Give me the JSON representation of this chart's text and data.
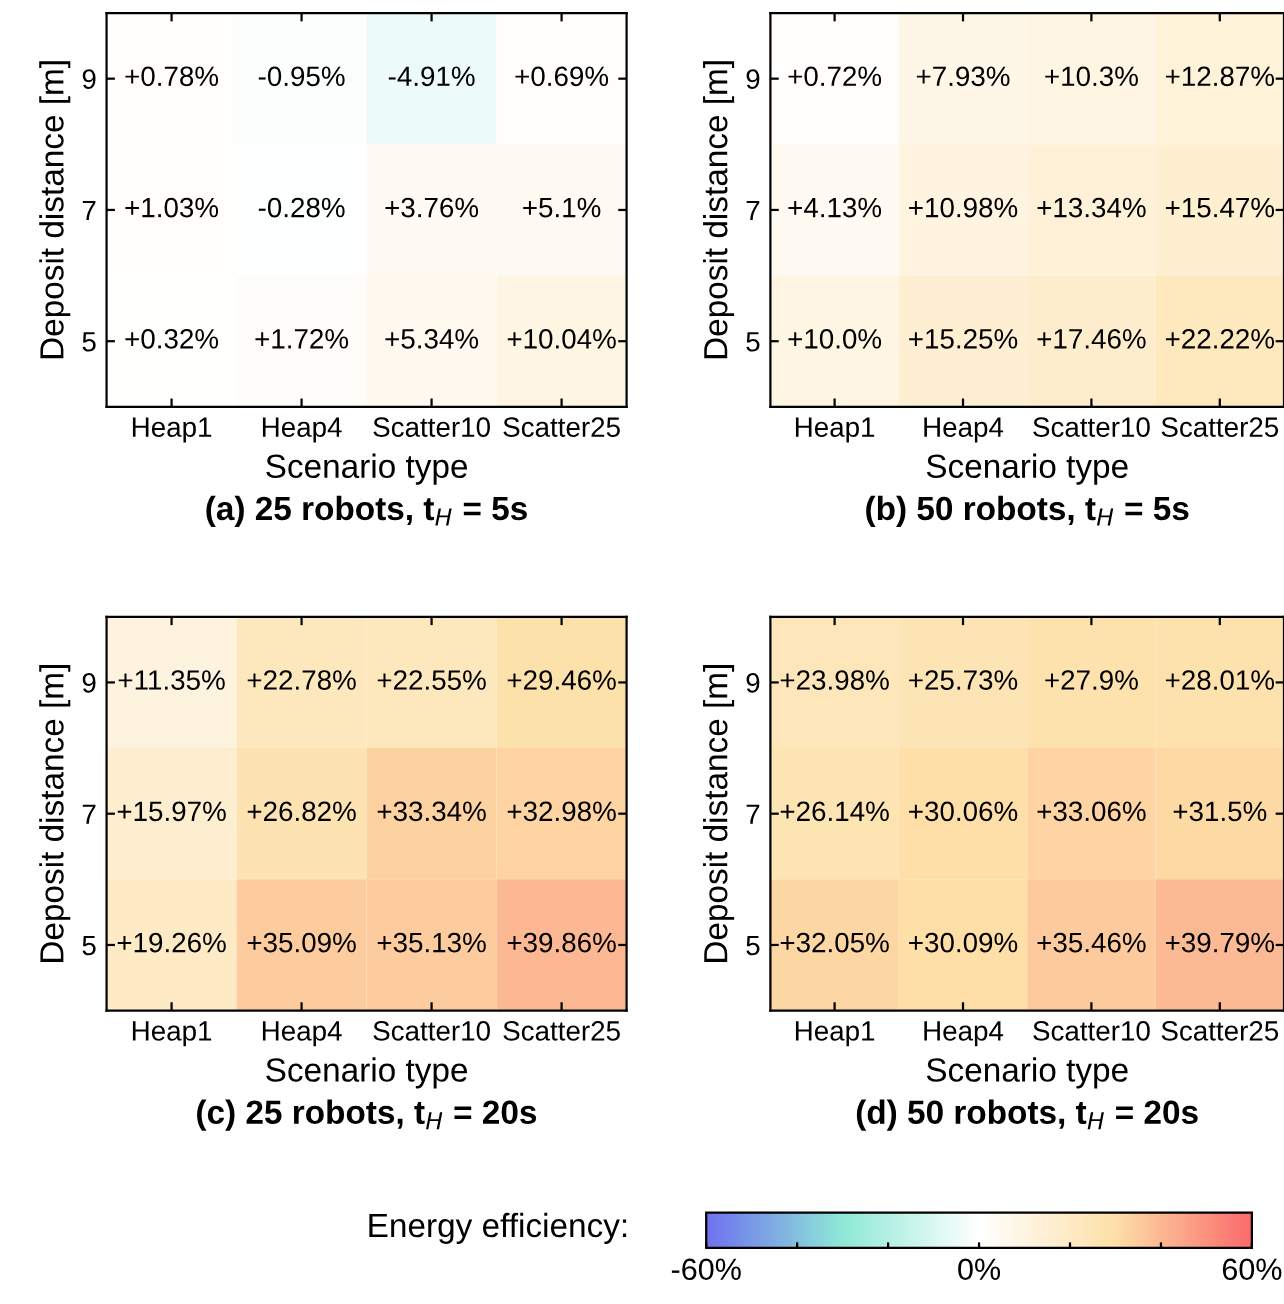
{
  "chart_data": [
    {
      "type": "heatmap",
      "title": "(a) 25 robots, t$_{H}$ = 5s",
      "xlabel": "Scenario type",
      "ylabel": "Deposit distance [m]",
      "categories": [
        "Heap1",
        "Heap4",
        "Scatter10",
        "Scatter25"
      ],
      "y_categories": [
        "9",
        "7",
        "5"
      ],
      "cells": [
        [
          0.78,
          -0.95,
          -4.91,
          0.69
        ],
        [
          1.03,
          -0.28,
          3.76,
          5.1
        ],
        [
          0.32,
          1.72,
          5.34,
          10.04
        ]
      ],
      "cell_labels": [
        [
          "+0.78%",
          "-0.95%",
          "-4.91%",
          "+0.69%"
        ],
        [
          "+1.03%",
          "-0.28%",
          "+3.76%",
          "+5.1%"
        ],
        [
          "+0.32%",
          "+1.72%",
          "+5.34%",
          "+10.04%"
        ]
      ]
    },
    {
      "type": "heatmap",
      "title": "(b) 50 robots, t$_{H}$ = 5s",
      "xlabel": "Scenario type",
      "ylabel": "Deposit distance [m]",
      "categories": [
        "Heap1",
        "Heap4",
        "Scatter10",
        "Scatter25"
      ],
      "y_categories": [
        "9",
        "7",
        "5"
      ],
      "cells": [
        [
          0.72,
          7.93,
          10.3,
          12.87
        ],
        [
          4.13,
          10.98,
          13.34,
          15.47
        ],
        [
          10.0,
          15.25,
          17.46,
          22.22
        ]
      ],
      "cell_labels": [
        [
          "+0.72%",
          "+7.93%",
          "+10.3%",
          "+12.87%"
        ],
        [
          "+4.13%",
          "+10.98%",
          "+13.34%",
          "+15.47%"
        ],
        [
          "+10.0%",
          "+15.25%",
          "+17.46%",
          "+22.22%"
        ]
      ]
    },
    {
      "type": "heatmap",
      "title": "(c) 25 robots, t$_{H}$ = 20s",
      "xlabel": "Scenario type",
      "ylabel": "Deposit distance [m]",
      "categories": [
        "Heap1",
        "Heap4",
        "Scatter10",
        "Scatter25"
      ],
      "y_categories": [
        "9",
        "7",
        "5"
      ],
      "cells": [
        [
          11.35,
          22.78,
          22.55,
          29.46
        ],
        [
          15.97,
          26.82,
          33.34,
          32.98
        ],
        [
          19.26,
          35.09,
          35.13,
          39.86
        ]
      ],
      "cell_labels": [
        [
          "+11.35%",
          "+22.78%",
          "+22.55%",
          "+29.46%"
        ],
        [
          "+15.97%",
          "+26.82%",
          "+33.34%",
          "+32.98%"
        ],
        [
          "+19.26%",
          "+35.09%",
          "+35.13%",
          "+39.86%"
        ]
      ]
    },
    {
      "type": "heatmap",
      "title": "(d) 50 robots, t$_{H}$ = 20s",
      "xlabel": "Scenario type",
      "ylabel": "Deposit distance [m]",
      "categories": [
        "Heap1",
        "Heap4",
        "Scatter10",
        "Scatter25"
      ],
      "y_categories": [
        "9",
        "7",
        "5"
      ],
      "cells": [
        [
          23.98,
          25.73,
          27.9,
          28.01
        ],
        [
          26.14,
          30.06,
          33.06,
          31.5
        ],
        [
          32.05,
          30.09,
          35.46,
          39.79
        ]
      ],
      "cell_labels": [
        [
          "+23.98%",
          "+25.73%",
          "+27.9%",
          "+28.01%"
        ],
        [
          "+26.14%",
          "+30.06%",
          "+33.06%",
          "+31.5%"
        ],
        [
          "+32.05%",
          "+30.09%",
          "+35.46%",
          "+39.79%"
        ]
      ],
      "clim": [
        -60,
        60
      ],
      "clabel": "Energy efficiency:",
      "cticks": [
        {
          "value": -60,
          "label": "-60%"
        },
        {
          "value": -40,
          "label": null
        },
        {
          "value": -20,
          "label": null
        },
        {
          "value": 0,
          "label": "0%"
        },
        {
          "value": 20,
          "label": null
        },
        {
          "value": 40,
          "label": null
        },
        {
          "value": 60,
          "label": "60%"
        }
      ]
    }
  ]
}
